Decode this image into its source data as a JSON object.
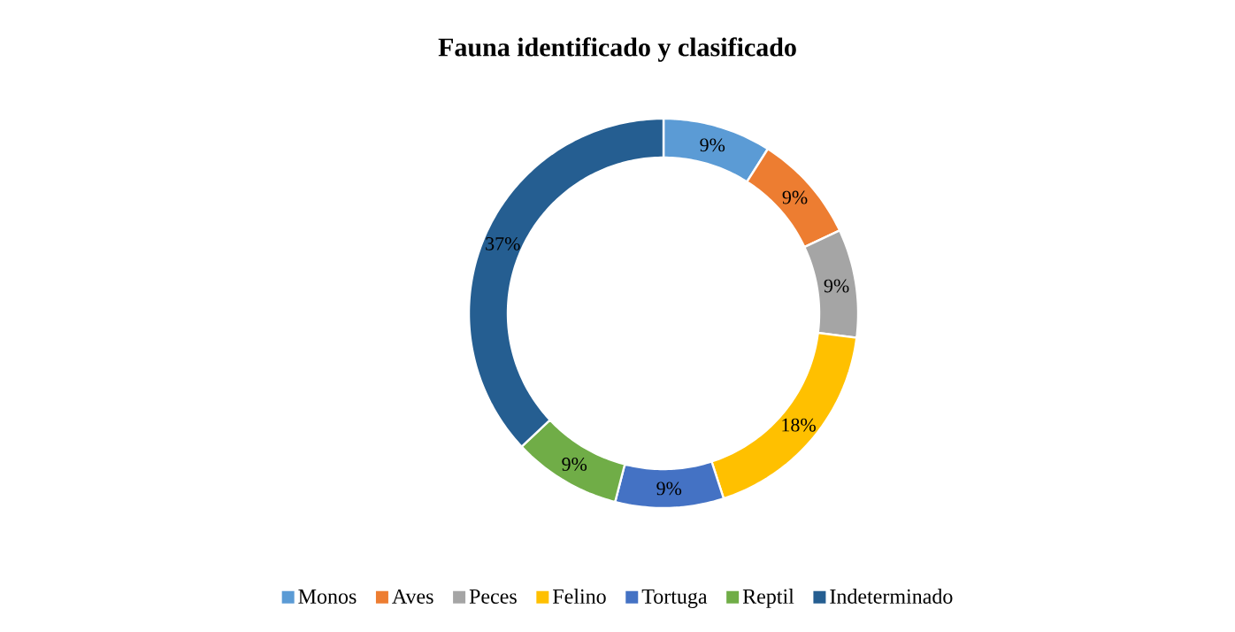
{
  "chart_data": {
    "type": "donut",
    "title": "Fauna identificado y clasificado",
    "categories": [
      "Monos",
      "Aves",
      "Peces",
      "Felino",
      "Tortuga",
      "Reptil",
      "Indeterminado"
    ],
    "values": [
      9,
      9,
      9,
      18,
      9,
      9,
      37
    ],
    "colors": [
      "#5b9bd5",
      "#ed7d31",
      "#a5a5a5",
      "#ffc000",
      "#4472c4",
      "#70ad47",
      "#255e91"
    ],
    "value_labels": [
      "9%",
      "9%",
      "9%",
      "18%",
      "9%",
      "9%",
      "37%"
    ],
    "legend": "bottom"
  }
}
